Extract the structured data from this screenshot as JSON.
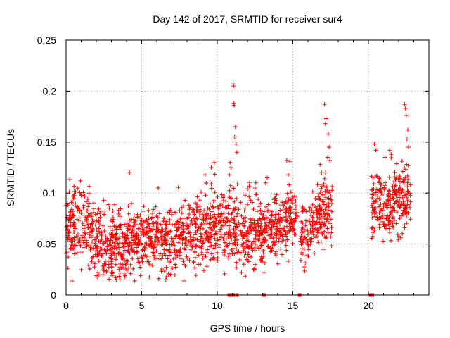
{
  "chart_data": {
    "type": "scatter",
    "title": "Day 142 of 2017, SRMTID for receiver sur4",
    "xlabel": "GPS time / hours",
    "ylabel": "SRMTID / TECUs",
    "xlim": [
      0,
      24
    ],
    "ylim": [
      0,
      0.25
    ],
    "x_ticks": [
      0,
      5,
      10,
      15,
      20
    ],
    "y_ticks": [
      0,
      0.05,
      0.1,
      0.15,
      0.2,
      0.25
    ],
    "x_tick_labels": [
      "0",
      "5",
      "10",
      "15",
      "20"
    ],
    "y_tick_labels": [
      "0",
      "0.05",
      "0.1",
      "0.15",
      "0.2",
      "0.25"
    ],
    "grid": true,
    "marker": "+",
    "color": "#ff0000",
    "series": [
      {
        "name": "SRMTID",
        "segments": [
          {
            "x_start": 0.0,
            "x_end": 10.0,
            "envelope": [
              [
                0.0,
                0.062,
                0.028
              ],
              [
                1.0,
                0.068,
                0.024
              ],
              [
                2.0,
                0.052,
                0.022
              ],
              [
                3.0,
                0.048,
                0.022
              ],
              [
                4.0,
                0.052,
                0.022
              ],
              [
                5.0,
                0.055,
                0.02
              ],
              [
                6.0,
                0.056,
                0.02
              ],
              [
                7.0,
                0.056,
                0.02
              ],
              [
                8.0,
                0.06,
                0.022
              ],
              [
                9.0,
                0.064,
                0.024
              ],
              [
                10.0,
                0.07,
                0.025
              ]
            ]
          },
          {
            "x_start": 10.0,
            "x_end": 15.3,
            "envelope": [
              [
                10.0,
                0.068,
                0.025
              ],
              [
                11.0,
                0.065,
                0.025
              ],
              [
                12.0,
                0.062,
                0.023
              ],
              [
                13.0,
                0.062,
                0.02
              ],
              [
                14.0,
                0.068,
                0.022
              ],
              [
                15.0,
                0.075,
                0.022
              ],
              [
                15.3,
                0.07,
                0.02
              ]
            ]
          },
          {
            "x_start": 15.5,
            "x_end": 17.6,
            "envelope": [
              [
                15.5,
                0.06,
                0.018
              ],
              [
                16.0,
                0.062,
                0.02
              ],
              [
                16.5,
                0.075,
                0.02
              ],
              [
                17.0,
                0.085,
                0.022
              ],
              [
                17.6,
                0.08,
                0.022
              ]
            ]
          },
          {
            "x_start": 20.2,
            "x_end": 22.8,
            "envelope": [
              [
                20.2,
                0.09,
                0.02
              ],
              [
                21.0,
                0.085,
                0.022
              ],
              [
                21.5,
                0.09,
                0.022
              ],
              [
                22.0,
                0.092,
                0.022
              ],
              [
                22.8,
                0.095,
                0.022
              ]
            ]
          }
        ],
        "notable_points": [
          [
            11.05,
            0.207
          ],
          [
            11.08,
            0.205
          ],
          [
            11.1,
            0.188
          ],
          [
            11.12,
            0.186
          ],
          [
            11.2,
            0.165
          ],
          [
            11.15,
            0.155
          ],
          [
            10.8,
            0.118
          ],
          [
            10.9,
            0.125
          ],
          [
            10.85,
            0.13
          ],
          [
            11.3,
            0.14
          ],
          [
            11.25,
            0.148
          ],
          [
            17.1,
            0.187
          ],
          [
            17.2,
            0.173
          ],
          [
            17.15,
            0.168
          ],
          [
            17.35,
            0.158
          ],
          [
            17.4,
            0.145
          ],
          [
            16.8,
            0.128
          ],
          [
            16.9,
            0.12
          ],
          [
            17.3,
            0.135
          ],
          [
            17.45,
            0.132
          ],
          [
            14.6,
            0.132
          ],
          [
            14.8,
            0.131
          ],
          [
            14.7,
            0.118
          ],
          [
            14.75,
            0.108
          ],
          [
            22.4,
            0.187
          ],
          [
            22.45,
            0.183
          ],
          [
            22.5,
            0.176
          ],
          [
            22.6,
            0.162
          ],
          [
            22.55,
            0.153
          ],
          [
            22.65,
            0.145
          ],
          [
            20.4,
            0.148
          ],
          [
            20.5,
            0.142
          ],
          [
            21.4,
            0.142
          ],
          [
            21.5,
            0.138
          ],
          [
            21.1,
            0.135
          ],
          [
            9.6,
            0.125
          ],
          [
            9.8,
            0.13
          ],
          [
            9.2,
            0.118
          ],
          [
            4.2,
            0.12
          ],
          [
            6.1,
            0.105
          ],
          [
            0.95,
            0.112
          ],
          [
            12.5,
            0.105
          ],
          [
            12.55,
            0.11
          ],
          [
            13.2,
            0.11
          ],
          [
            13.3,
            0.115
          ],
          [
            13.8,
            0.095
          ],
          [
            2.5,
            0.024
          ],
          [
            3.0,
            0.022
          ],
          [
            6.6,
            0.015
          ],
          [
            6.65,
            0.018
          ],
          [
            3.5,
            0.025
          ],
          [
            11.6,
            0.022
          ],
          [
            13.1,
            0.022
          ]
        ],
        "zero_markers": [
          10.8,
          11.05,
          11.3,
          13.1,
          15.45,
          20.15,
          20.25
        ]
      }
    ]
  }
}
